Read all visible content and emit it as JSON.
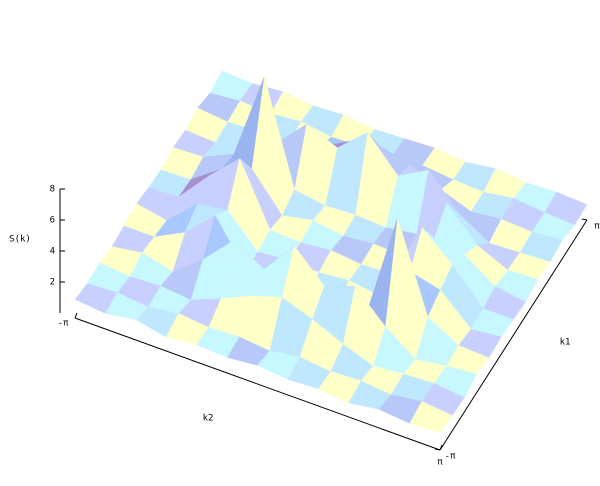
{
  "chart_data": {
    "type": "surface",
    "zlabel": "S(k)",
    "xlabel": "k2",
    "ylabel": "k1",
    "x": [
      -3.14,
      -2.62,
      -2.09,
      -1.57,
      -1.05,
      -0.52,
      0,
      0.52,
      1.05,
      1.57,
      2.09,
      2.62,
      3.14
    ],
    "y": [
      -3.14,
      -2.62,
      -2.09,
      -1.57,
      -1.05,
      -0.52,
      0,
      0.52,
      1.05,
      1.57,
      2.09,
      2.62,
      3.14
    ],
    "z": [
      [
        1.2,
        1.0,
        1.3,
        0.9,
        1.1,
        1.0,
        1.2,
        1.0,
        1.1,
        0.9,
        1.2,
        1.0,
        1.1
      ],
      [
        1.0,
        1.1,
        0.9,
        1.2,
        1.0,
        1.1,
        0.9,
        1.2,
        1.0,
        1.1,
        0.9,
        1.2,
        1.0
      ],
      [
        1.1,
        0.9,
        1.0,
        0.8,
        1.6,
        2.5,
        3.1,
        2.4,
        1.5,
        0.8,
        1.0,
        1.1,
        0.9
      ],
      [
        0.9,
        1.2,
        0.7,
        2.2,
        4.1,
        3.0,
        5.2,
        3.3,
        4.0,
        2.1,
        0.7,
        1.0,
        1.2
      ],
      [
        1.0,
        1.0,
        2.0,
        3.8,
        1.0,
        0.9,
        1.1,
        0.8,
        1.2,
        7.9,
        2.2,
        1.1,
        1.0
      ],
      [
        1.2,
        0.8,
        2.6,
        2.9,
        0.9,
        1.1,
        1.0,
        1.2,
        0.9,
        3.2,
        2.7,
        0.9,
        1.1
      ],
      [
        1.0,
        1.1,
        3.2,
        5.0,
        1.1,
        1.0,
        1.2,
        1.0,
        1.1,
        4.8,
        3.1,
        1.0,
        1.0
      ],
      [
        0.9,
        1.0,
        2.4,
        3.1,
        0.8,
        1.2,
        0.9,
        1.1,
        1.0,
        2.9,
        2.5,
        1.2,
        0.9
      ],
      [
        1.1,
        1.2,
        2.1,
        7.8,
        1.2,
        0.9,
        1.0,
        0.9,
        1.2,
        3.9,
        1.9,
        1.0,
        1.1
      ],
      [
        1.0,
        0.9,
        0.8,
        2.3,
        4.2,
        3.4,
        5.1,
        3.0,
        4.1,
        2.0,
        0.8,
        0.9,
        1.0
      ],
      [
        1.2,
        1.0,
        1.1,
        0.9,
        1.5,
        2.6,
        3.0,
        2.5,
        1.6,
        0.9,
        1.1,
        1.0,
        1.2
      ],
      [
        0.9,
        1.1,
        1.0,
        1.2,
        0.9,
        1.0,
        1.1,
        1.2,
        1.0,
        0.9,
        1.2,
        1.0,
        0.9
      ],
      [
        1.1,
        1.0,
        1.2,
        1.0,
        1.1,
        0.9,
        1.0,
        1.1,
        0.9,
        1.2,
        1.0,
        1.1,
        1.0
      ]
    ],
    "xlim": [
      -3.14159,
      3.14159
    ],
    "ylim": [
      -3.14159,
      3.14159
    ],
    "zlim": [
      0,
      8
    ],
    "xticks": [
      {
        "value": -3.14159,
        "label": "-π"
      },
      {
        "value": 3.14159,
        "label": "π"
      }
    ],
    "yticks": [
      {
        "value": -3.14159,
        "label": "-π"
      },
      {
        "value": 3.14159,
        "label": "π"
      }
    ],
    "zticks": [
      2,
      4,
      6,
      8
    ],
    "facet_colors": [
      "#5a5aa8",
      "#8c80c8",
      "#a890d0",
      "#9ab4f0",
      "#a8c8ff",
      "#b8c8f8",
      "#c8d0ff",
      "#bfe8ff",
      "#c8f8ff",
      "#ffffc8"
    ]
  }
}
